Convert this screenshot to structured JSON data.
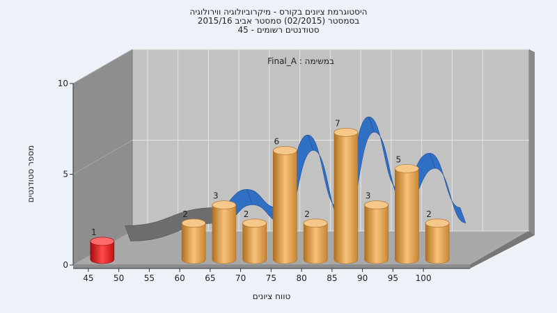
{
  "chart_data": {
    "type": "bar",
    "title_lines": [
      "היסטוגרמת ציונים בקורס - מיקרוביולוגיה ווירולוגיה",
      "בסמסטר  (02/2015)  סמסטר אביב 2015/16",
      "סטודנטים רשומים - 45"
    ],
    "task_label": "במשימה : Final_A",
    "xlabel": "טווח ציונים",
    "ylabel": "מספר סטודנטים",
    "x_ticks": [
      "45",
      "50",
      "55",
      "60",
      "65",
      "70",
      "75",
      "80",
      "85",
      "90",
      "95",
      "100"
    ],
    "y_ticks": [
      "0",
      "5",
      "10"
    ],
    "ylim": [
      0,
      10
    ],
    "categories": [
      "45",
      "60",
      "65",
      "70",
      "75",
      "80",
      "85",
      "90",
      "95",
      "100"
    ],
    "series": [
      {
        "values": [
          1,
          2,
          3,
          2,
          6,
          2,
          7,
          3,
          5,
          2
        ]
      }
    ],
    "grid": true,
    "colors": {
      "bar_low": "#e01515",
      "bar": "#e8a44a",
      "ribbon": "#2f6fc4",
      "ribbon_low": "#6d6d6d",
      "back_wall": "#c2c2c2",
      "side_wall": "#8e8e8e",
      "floor": "#a9a9a9"
    }
  }
}
